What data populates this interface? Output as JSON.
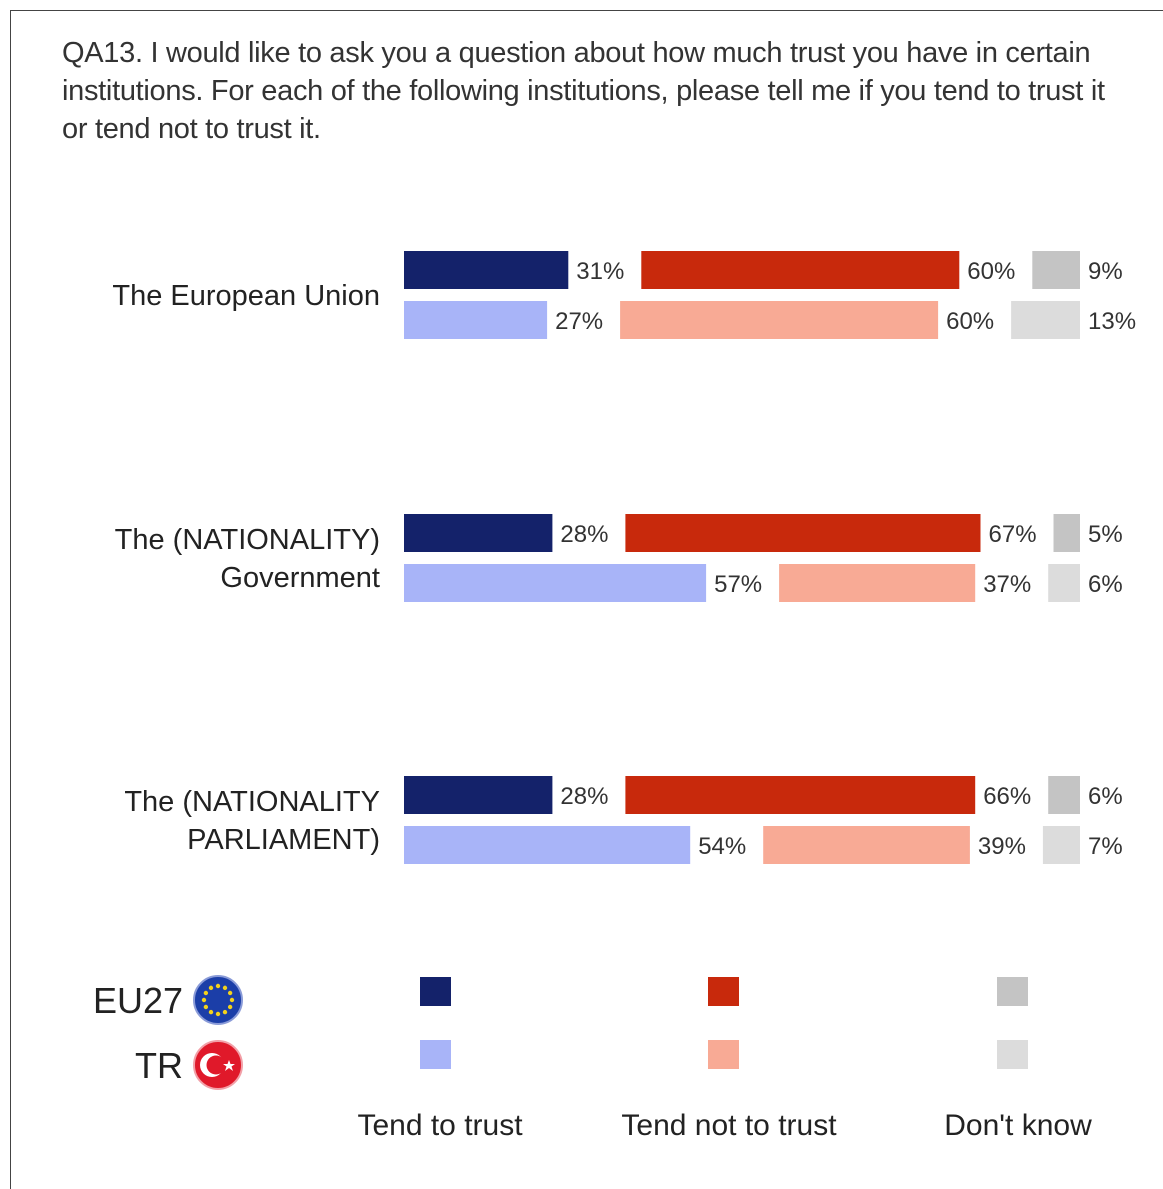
{
  "question": "QA13. I would like to ask you a question about how much trust you have in certain institutions. For each of the following institutions, please tell me if you tend to trust it or tend not to trust it.",
  "colors": {
    "eu_trust": "#14226a",
    "eu_not": "#c8290c",
    "eu_dk": "#c4c4c4",
    "tr_trust": "#a8b4f8",
    "tr_not": "#f8aa95",
    "tr_dk": "#dcdcdc"
  },
  "legend": {
    "rows": [
      {
        "label": "EU27",
        "flag": "eu-flag-icon"
      },
      {
        "label": "TR",
        "flag": "turkey-flag-icon"
      }
    ],
    "categories": [
      "Tend to trust",
      "Tend not to trust",
      "Don't know"
    ]
  },
  "chart_data": {
    "type": "bar",
    "orientation": "horizontal-stacked-segments",
    "categories": [
      [
        "The European Union"
      ],
      [
        "The (NATIONALITY)",
        "Government"
      ],
      [
        "The (NATIONALITY",
        "PARLIAMENT)"
      ]
    ],
    "segments": [
      "Tend to trust",
      "Tend not to trust",
      "Don't know"
    ],
    "series": [
      {
        "name": "EU27",
        "values": [
          [
            31,
            60,
            9
          ],
          [
            28,
            67,
            5
          ],
          [
            28,
            66,
            6
          ]
        ],
        "labels": [
          [
            "31%",
            "60%",
            "9%"
          ],
          [
            "28%",
            "67%",
            "5%"
          ],
          [
            "28%",
            "66%",
            "6%"
          ]
        ]
      },
      {
        "name": "TR",
        "values": [
          [
            27,
            60,
            13
          ],
          [
            57,
            37,
            6
          ],
          [
            54,
            39,
            7
          ]
        ],
        "labels": [
          [
            "27%",
            "60%",
            "13%"
          ],
          [
            "57%",
            "37%",
            "6%"
          ],
          [
            "54%",
            "39%",
            "7%"
          ]
        ]
      }
    ],
    "unit": "%",
    "legend": "bottom"
  }
}
